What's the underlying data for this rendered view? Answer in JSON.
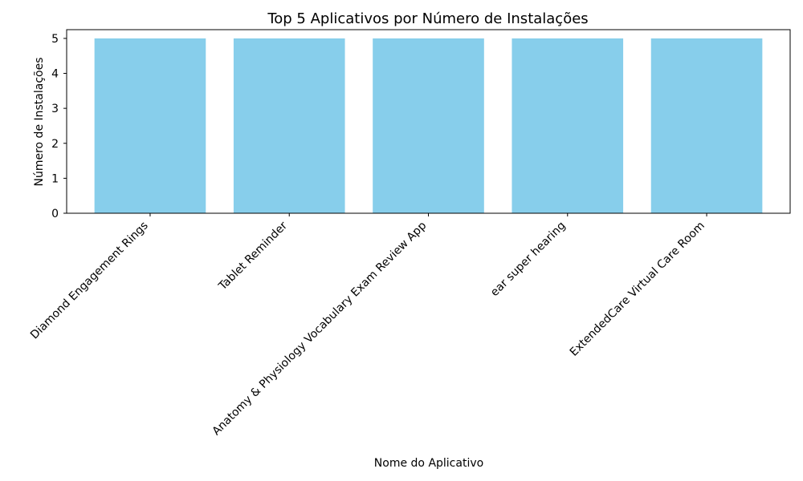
{
  "chart_data": {
    "type": "bar",
    "title": "Top 5 Aplicativos por Número de Instalações",
    "xlabel": "Nome do Aplicativo",
    "ylabel": "Número de Instalações",
    "categories": [
      "Diamond Engagement Rings",
      "Tablet Reminder",
      "Anatomy & Physiology Vocabulary Exam Review App",
      "ear super hearing",
      "ExtendedCare Virtual Care Room"
    ],
    "values": [
      5,
      5,
      5,
      5,
      5
    ],
    "ylim": [
      0,
      5.25
    ],
    "yticks": [
      0,
      1,
      2,
      3,
      4,
      5
    ],
    "grid": false,
    "colors": {
      "bar": "#87CEEB",
      "axis": "#000000",
      "text": "#000000"
    }
  }
}
